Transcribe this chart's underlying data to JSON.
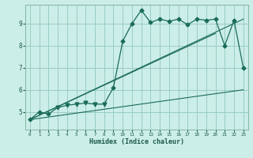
{
  "xlabel": "Humidex (Indice chaleur)",
  "background_color": "#cceee8",
  "line_color": "#1a6b5a",
  "grid_color": "#99ccc4",
  "xlim": [
    -0.5,
    23.5
  ],
  "ylim": [
    4.2,
    9.85
  ],
  "yticks": [
    5,
    6,
    7,
    8,
    9
  ],
  "xticks": [
    0,
    1,
    2,
    3,
    4,
    5,
    6,
    7,
    8,
    9,
    10,
    11,
    12,
    13,
    14,
    15,
    16,
    17,
    18,
    19,
    20,
    21,
    22,
    23
  ],
  "main_x": [
    0,
    1,
    2,
    3,
    4,
    5,
    6,
    7,
    8,
    9,
    10,
    11,
    12,
    13,
    14,
    15,
    16,
    17,
    18,
    19,
    20,
    21,
    22,
    23
  ],
  "main_y": [
    4.65,
    5.0,
    4.9,
    5.2,
    5.3,
    5.35,
    5.4,
    5.35,
    5.35,
    6.1,
    8.2,
    9.0,
    9.6,
    9.05,
    9.2,
    9.1,
    9.2,
    8.95,
    9.2,
    9.15,
    9.2,
    8.0,
    9.15,
    7.0
  ],
  "markers_normal_x": [
    0,
    1,
    2,
    9,
    10,
    11,
    12,
    13,
    14,
    15,
    16,
    17,
    18,
    19,
    20,
    21,
    22,
    23
  ],
  "markers_normal_y": [
    4.65,
    5.0,
    4.9,
    6.1,
    8.2,
    9.0,
    9.6,
    9.05,
    9.2,
    9.1,
    9.2,
    8.95,
    9.2,
    9.15,
    9.2,
    8.0,
    9.15,
    7.0
  ],
  "markers_tri_x": [
    3,
    4,
    5,
    6,
    7,
    8
  ],
  "markers_tri_y": [
    5.2,
    5.3,
    5.35,
    5.4,
    5.35,
    5.35
  ],
  "line2_x": [
    0,
    23
  ],
  "line2_y": [
    4.65,
    6.0
  ],
  "line3_x": [
    0,
    23
  ],
  "line3_y": [
    4.65,
    9.2
  ],
  "line4_x": [
    0,
    20
  ],
  "line4_y": [
    4.65,
    8.55
  ]
}
